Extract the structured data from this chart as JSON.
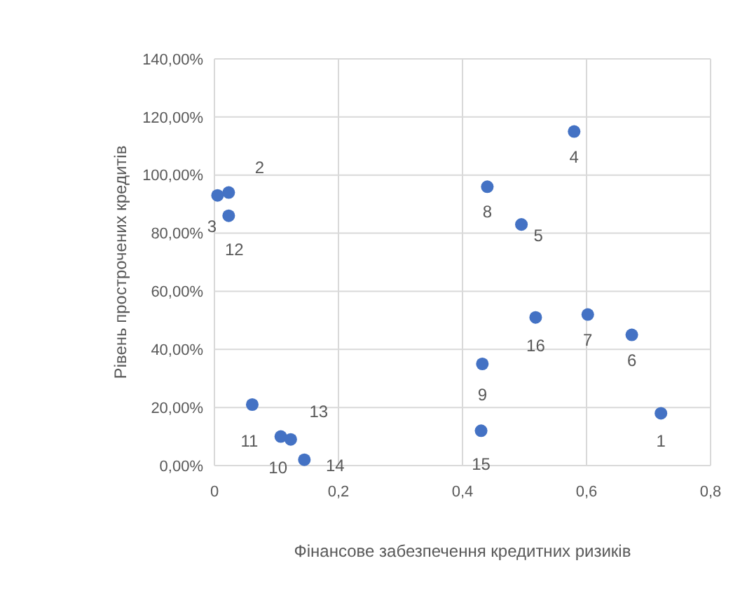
{
  "chart_data": {
    "type": "scatter",
    "xlabel": "Фінансове забезпечення кредитних ризиків",
    "ylabel": "Рівень прострочених кредитів",
    "xlim": [
      0,
      0.8
    ],
    "xticks": [
      0,
      {
        "value": 0.2,
        "label": "0,2"
      },
      {
        "value": 0.4,
        "label": "0,4"
      },
      {
        "value": 0.6,
        "label": "0,6"
      },
      {
        "value": 0.8,
        "label": "0,8"
      }
    ],
    "ylim": [
      0,
      140
    ],
    "yticks": [
      {
        "value": 0,
        "label": "0,00%"
      },
      {
        "value": 20,
        "label": "20,00%"
      },
      {
        "value": 40,
        "label": "40,00%"
      },
      {
        "value": 60,
        "label": "60,00%"
      },
      {
        "value": 80,
        "label": "80,00%"
      },
      {
        "value": 100,
        "label": "100,00%"
      },
      {
        "value": 120,
        "label": "120,00%"
      },
      {
        "value": 140,
        "label": "140,00%"
      }
    ],
    "grid": true,
    "marker": "circle",
    "series": [
      {
        "color": "#4472c4",
        "x": [
          0.72,
          0.023,
          0.005,
          0.58,
          0.495,
          0.673,
          0.602,
          0.44,
          0.432,
          0.107,
          0.061,
          0.023,
          0.123,
          0.145,
          0.43,
          0.518
        ],
        "values": [
          18,
          94,
          93,
          115,
          83,
          45,
          52,
          96,
          35,
          10,
          21,
          86,
          9,
          2,
          12,
          51
        ]
      }
    ],
    "annotations": [
      {
        "text": "1",
        "x": 0.72,
        "y": 18
      },
      {
        "text": "2",
        "x": 0.023,
        "y": 94
      },
      {
        "text": "3",
        "x": 0.005,
        "y": 93
      },
      {
        "text": "4",
        "x": 0.58,
        "y": 115
      },
      {
        "text": "5",
        "x": 0.495,
        "y": 83
      },
      {
        "text": "6",
        "x": 0.673,
        "y": 45
      },
      {
        "text": "7",
        "x": 0.602,
        "y": 52
      },
      {
        "text": "8",
        "x": 0.44,
        "y": 96
      },
      {
        "text": "9",
        "x": 0.432,
        "y": 35
      },
      {
        "text": "10",
        "x": 0.107,
        "y": 10
      },
      {
        "text": "11",
        "x": 0.061,
        "y": 21
      },
      {
        "text": "12",
        "x": 0.023,
        "y": 86
      },
      {
        "text": "13",
        "x": 0.123,
        "y": 9
      },
      {
        "text": "14",
        "x": 0.145,
        "y": 2
      },
      {
        "text": "15",
        "x": 0.43,
        "y": 12
      },
      {
        "text": "16",
        "x": 0.518,
        "y": 51
      }
    ]
  }
}
